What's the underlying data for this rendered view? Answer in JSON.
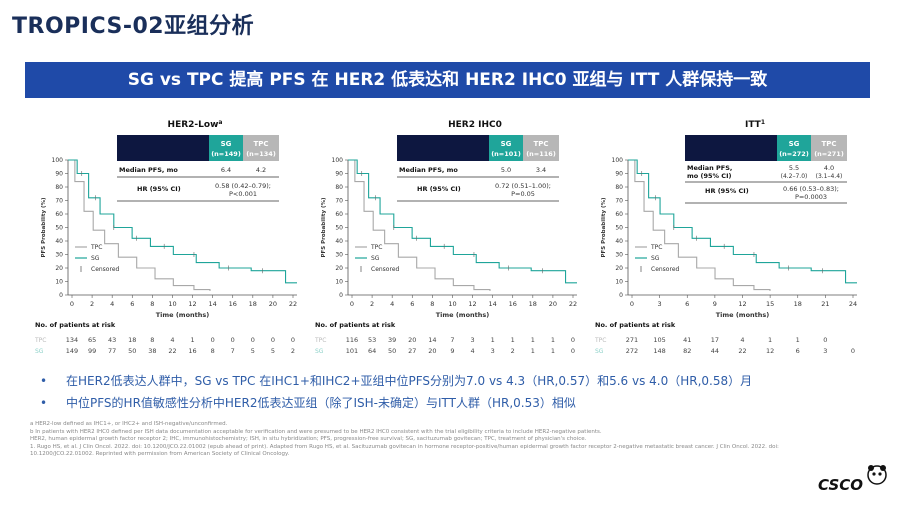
{
  "title": "TROPICS-02亚组分析",
  "banner": "SG vs TPC 提高 PFS 在 HER2 低表达和 HER2 IHC0 亚组与 ITT 人群保持一致",
  "colors": {
    "sg": "#1fa59a",
    "tpc": "#b7b7b7",
    "dark": "#0d1740",
    "banner": "#1f4aa8"
  },
  "panels": [
    {
      "title": "HER2-Low",
      "title_sup": "a",
      "sg_label": "SG",
      "sg_n": "(n=149)",
      "tpc_label": "TPC",
      "tpc_n": "(n=134)",
      "median_label": "Median PFS, mo",
      "median_sg": "6.4",
      "median_tpc": "4.2",
      "hr_label": "HR (95% CI)",
      "hr_value_1": "0.58 (0.42–0.79);",
      "hr_value_2": "P<0.001",
      "y_label": "PFS Probability (%)",
      "x_label": "Time (months)",
      "y_ticks": [
        "0",
        "10",
        "20",
        "30",
        "40",
        "50",
        "60",
        "70",
        "80",
        "90",
        "100"
      ],
      "x_ticks": [
        "0",
        "2",
        "4",
        "6",
        "8",
        "10",
        "12",
        "14",
        "16",
        "18",
        "20",
        "22"
      ],
      "legend": [
        "TPC",
        "SG",
        "Censored"
      ],
      "risk_title": "No. of patients at risk",
      "risk_tpc_label": "TPC",
      "risk_sg_label": "SG",
      "risk_tpc": [
        "134",
        "65",
        "43",
        "18",
        "8",
        "4",
        "1",
        "0",
        "0",
        "0",
        "0",
        "0"
      ],
      "risk_sg": [
        "149",
        "99",
        "77",
        "50",
        "38",
        "22",
        "16",
        "8",
        "7",
        "5",
        "5",
        "2"
      ]
    },
    {
      "title": "HER2 IHC0",
      "title_sup": "",
      "sg_label": "SG",
      "sg_n": "(n=101)",
      "tpc_label": "TPC",
      "tpc_n": "(n=116)",
      "median_label": "Median PFS, mo",
      "median_sg": "5.0",
      "median_tpc": "3.4",
      "hr_label": "HR (95% CI)",
      "hr_value_1": "0.72 (0.51–1.00);",
      "hr_value_2": "P=0.05",
      "y_label": "PFS Probability (%)",
      "x_label": "Time (months)",
      "y_ticks": [
        "0",
        "10",
        "20",
        "30",
        "40",
        "50",
        "60",
        "70",
        "80",
        "90",
        "100"
      ],
      "x_ticks": [
        "0",
        "2",
        "4",
        "6",
        "8",
        "10",
        "12",
        "14",
        "16",
        "18",
        "20",
        "22"
      ],
      "legend": [
        "TPC",
        "SG",
        "Censored"
      ],
      "risk_title": "No. of patients at risk",
      "risk_tpc_label": "TPC",
      "risk_sg_label": "SG",
      "risk_tpc": [
        "116",
        "53",
        "39",
        "20",
        "14",
        "7",
        "3",
        "1",
        "1",
        "1",
        "1",
        "0"
      ],
      "risk_sg": [
        "101",
        "64",
        "50",
        "27",
        "20",
        "9",
        "4",
        "3",
        "2",
        "1",
        "1",
        "0"
      ]
    },
    {
      "title": "ITT",
      "title_sup": "1",
      "sg_label": "SG",
      "sg_n": "(n=272)",
      "tpc_label": "TPC",
      "tpc_n": "(n=271)",
      "median_label": "Median PFS,",
      "median_label_2": "mo (95% CI)",
      "median_sg": "5.5",
      "median_sg_ci": "(4.2–7.0)",
      "median_tpc": "4.0",
      "median_tpc_ci": "(3.1–4.4)",
      "hr_label": "HR (95% CI)",
      "hr_value_1": "0.66 (0.53–0.83);",
      "hr_value_2": "P=0.0003",
      "y_label": "PFS Probability (%)",
      "x_label": "Time (months)",
      "y_ticks": [
        "0",
        "10",
        "20",
        "30",
        "40",
        "50",
        "60",
        "70",
        "80",
        "90",
        "100"
      ],
      "x_ticks": [
        "0",
        "3",
        "6",
        "9",
        "12",
        "15",
        "18",
        "21",
        "24"
      ],
      "legend": [
        "TPC",
        "SG",
        "Censored"
      ],
      "risk_title": "No. of patients at risk",
      "risk_tpc_label": "TPC",
      "risk_sg_label": "SG",
      "risk_tpc": [
        "271",
        "105",
        "41",
        "17",
        "4",
        "1",
        "1",
        "0",
        ""
      ],
      "risk_sg": [
        "272",
        "148",
        "82",
        "44",
        "22",
        "12",
        "6",
        "3",
        "0"
      ]
    }
  ],
  "bullets": [
    "在HER2低表达人群中，SG vs TPC 在IHC1+和IHC2+亚组中位PFS分别为7.0 vs 4.3（HR,0.57）和5.6 vs 4.0（HR,0.58）月",
    "中位PFS的HR值敏感性分析中HER2低表达亚组（除了ISH-未确定）与ITT人群（HR,0.53）相似"
  ],
  "footnotes": [
    "a HER2-low defined as IHC1+, or IHC2+ and ISH-negative/unconfirmed.",
    "b In patients with HER2 IHC0 defined per ISH data documentation acceptable for verification and were presumed to be HER2 IHC0 consistent with the trial eligibility criteria to include HER2-negative patients.",
    "HER2, human epidermal growth factor receptor 2; IHC, immunohistochemistry; ISH, in situ hybridization; PFS, progression-free survival; SG, sacituzumab govitecan; TPC, treatment of physician's choice.",
    "1. Rugo HS, et al. J Clin Oncol. 2022. doi: 10.1200/JCO.22.01002 (epub ahead of print). Adapted from Rugo HS, et al. Sacituzumab govitecan in hormone receptor-positive/human epidermal growth factor receptor 2-negative metastatic breast cancer. J Clin Oncol. 2022. doi:",
    "10.1200/JCO.22.01002. Reprinted with permission from American Society of Clinical Oncology."
  ],
  "logo": "CSCO"
}
